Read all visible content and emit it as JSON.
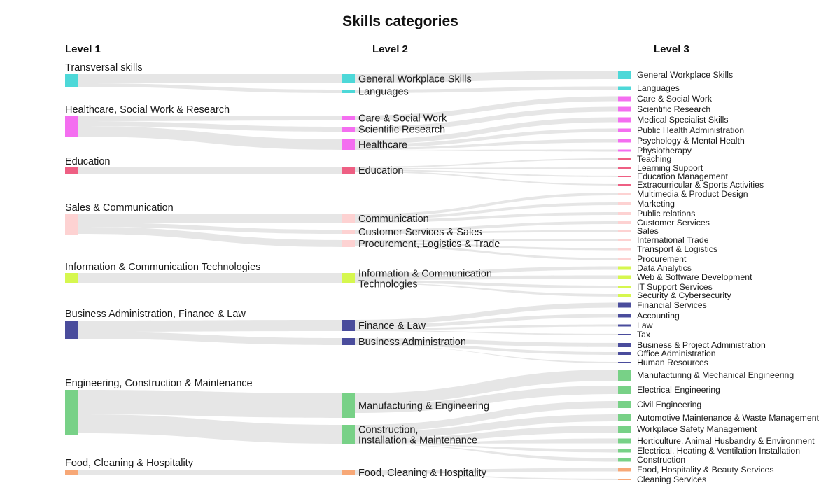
{
  "title": "Skills categories",
  "column_headers": {
    "level1": "Level 1",
    "level2": "Level 2",
    "level3": "Level 3"
  },
  "colors": {
    "transversal": "#4dd8d8",
    "healthcare": "#f46ef0",
    "education": "#ee5f83",
    "sales": "#fdd2d2",
    "ict": "#d6f74f",
    "business": "#4a4c9c",
    "engineering": "#78d187",
    "food": "#f7a877",
    "link": "#e3e3e3"
  },
  "level1": [
    {
      "id": "transversal",
      "label": "Transversal skills",
      "color_key": "transversal"
    },
    {
      "id": "healthcare",
      "label": "Healthcare, Social Work & Research",
      "color_key": "healthcare"
    },
    {
      "id": "education",
      "label": "Education",
      "color_key": "education"
    },
    {
      "id": "sales",
      "label": "Sales & Communication",
      "color_key": "sales"
    },
    {
      "id": "ict",
      "label": "Information & Communication Technologies",
      "color_key": "ict"
    },
    {
      "id": "business",
      "label": "Business Administration, Finance & Law",
      "color_key": "business"
    },
    {
      "id": "engineering",
      "label": "Engineering, Construction & Maintenance",
      "color_key": "engineering"
    },
    {
      "id": "food",
      "label": "Food, Cleaning & Hospitality",
      "color_key": "food"
    }
  ],
  "level2": [
    {
      "id": "gws2",
      "label": "General Workplace Skills",
      "color_key": "transversal"
    },
    {
      "id": "lang2",
      "label": "Languages",
      "color_key": "transversal"
    },
    {
      "id": "care2",
      "label": "Care & Social Work",
      "color_key": "healthcare"
    },
    {
      "id": "sci2",
      "label": "Scientific Research",
      "color_key": "healthcare"
    },
    {
      "id": "health2",
      "label": "Healthcare",
      "color_key": "healthcare"
    },
    {
      "id": "edu2",
      "label": "Education",
      "color_key": "education"
    },
    {
      "id": "comm2",
      "label": "Communication",
      "color_key": "sales"
    },
    {
      "id": "css2",
      "label": "Customer Services & Sales",
      "color_key": "sales"
    },
    {
      "id": "plt2",
      "label": "Procurement, Logistics & Trade",
      "color_key": "sales"
    },
    {
      "id": "ict2",
      "label": "Information & Communication Technologies",
      "lines": [
        "Information & Communication",
        "Technologies"
      ],
      "color_key": "ict"
    },
    {
      "id": "fin2",
      "label": "Finance & Law",
      "color_key": "business"
    },
    {
      "id": "bus2",
      "label": "Business Administration",
      "color_key": "business"
    },
    {
      "id": "man2",
      "label": "Manufacturing & Engineering",
      "color_key": "engineering"
    },
    {
      "id": "con2",
      "label": "Construction, Installation & Maintenance",
      "lines": [
        "Construction,",
        "Installation & Maintenance"
      ],
      "color_key": "engineering"
    },
    {
      "id": "food2",
      "label": "Food, Cleaning & Hospitality",
      "color_key": "food"
    }
  ],
  "level3": [
    {
      "label": "General Workplace Skills",
      "parent": "gws2",
      "color_key": "transversal"
    },
    {
      "label": "Languages",
      "parent": "lang2",
      "color_key": "transversal"
    },
    {
      "label": "Care & Social Work",
      "parent": "care2",
      "color_key": "healthcare"
    },
    {
      "label": "Scientific Research",
      "parent": "sci2",
      "color_key": "healthcare"
    },
    {
      "label": "Medical Specialist Skills",
      "parent": "health2",
      "color_key": "healthcare"
    },
    {
      "label": "Public Health Administration",
      "parent": "health2",
      "color_key": "healthcare"
    },
    {
      "label": "Psychology & Mental Health",
      "parent": "health2",
      "color_key": "healthcare"
    },
    {
      "label": "Physiotherapy",
      "parent": "health2",
      "color_key": "healthcare"
    },
    {
      "label": "Teaching",
      "parent": "edu2",
      "color_key": "education"
    },
    {
      "label": "Learning Support",
      "parent": "edu2",
      "color_key": "education"
    },
    {
      "label": "Education Management",
      "parent": "edu2",
      "color_key": "education"
    },
    {
      "label": "Extracurricular & Sports Activities",
      "parent": "edu2",
      "color_key": "education"
    },
    {
      "label": "Multimedia & Product Design",
      "parent": "comm2",
      "color_key": "sales"
    },
    {
      "label": "Marketing",
      "parent": "comm2",
      "color_key": "sales"
    },
    {
      "label": "Public relations",
      "parent": "comm2",
      "color_key": "sales"
    },
    {
      "label": "Customer Services",
      "parent": "css2",
      "color_key": "sales"
    },
    {
      "label": "Sales",
      "parent": "css2",
      "color_key": "sales"
    },
    {
      "label": "International Trade",
      "parent": "plt2",
      "color_key": "sales"
    },
    {
      "label": "Transport & Logistics",
      "parent": "plt2",
      "color_key": "sales"
    },
    {
      "label": "Procurement",
      "parent": "plt2",
      "color_key": "sales"
    },
    {
      "label": "Data Analytics",
      "parent": "ict2",
      "color_key": "ict"
    },
    {
      "label": "Web & Software Development",
      "parent": "ict2",
      "color_key": "ict"
    },
    {
      "label": "IT Support Services",
      "parent": "ict2",
      "color_key": "ict"
    },
    {
      "label": "Security & Cybersecurity",
      "parent": "ict2",
      "color_key": "ict"
    },
    {
      "label": "Financial Services",
      "parent": "fin2",
      "color_key": "business"
    },
    {
      "label": "Accounting",
      "parent": "fin2",
      "color_key": "business"
    },
    {
      "label": "Law",
      "parent": "fin2",
      "color_key": "business"
    },
    {
      "label": "Tax",
      "parent": "fin2",
      "color_key": "business"
    },
    {
      "label": "Business & Project Administration",
      "parent": "bus2",
      "color_key": "business"
    },
    {
      "label": "Office Administration",
      "parent": "bus2",
      "color_key": "business"
    },
    {
      "label": "Human Resources",
      "parent": "bus2",
      "color_key": "business"
    },
    {
      "label": "Manufacturing & Mechanical Engineering",
      "parent": "man2",
      "color_key": "engineering"
    },
    {
      "label": "Electrical Engineering",
      "parent": "man2",
      "color_key": "engineering"
    },
    {
      "label": "Civil Engineering",
      "parent": "con2",
      "color_key": "engineering"
    },
    {
      "label": "Automotive Maintenance & Waste Management",
      "parent": "con2",
      "color_key": "engineering"
    },
    {
      "label": "Workplace Safety Management",
      "parent": "con2",
      "color_key": "engineering"
    },
    {
      "label": "Horticulture, Animal Husbandry & Environment",
      "parent": "con2",
      "color_key": "engineering"
    },
    {
      "label": "Electrical, Heating & Ventilation Installation",
      "parent": "con2",
      "color_key": "engineering"
    },
    {
      "label": "Construction",
      "parent": "con2",
      "color_key": "engineering"
    },
    {
      "label": "Food, Hospitality & Beauty Services",
      "parent": "food2",
      "color_key": "food"
    },
    {
      "label": "Cleaning Services",
      "parent": "food2",
      "color_key": "food"
    }
  ]
}
